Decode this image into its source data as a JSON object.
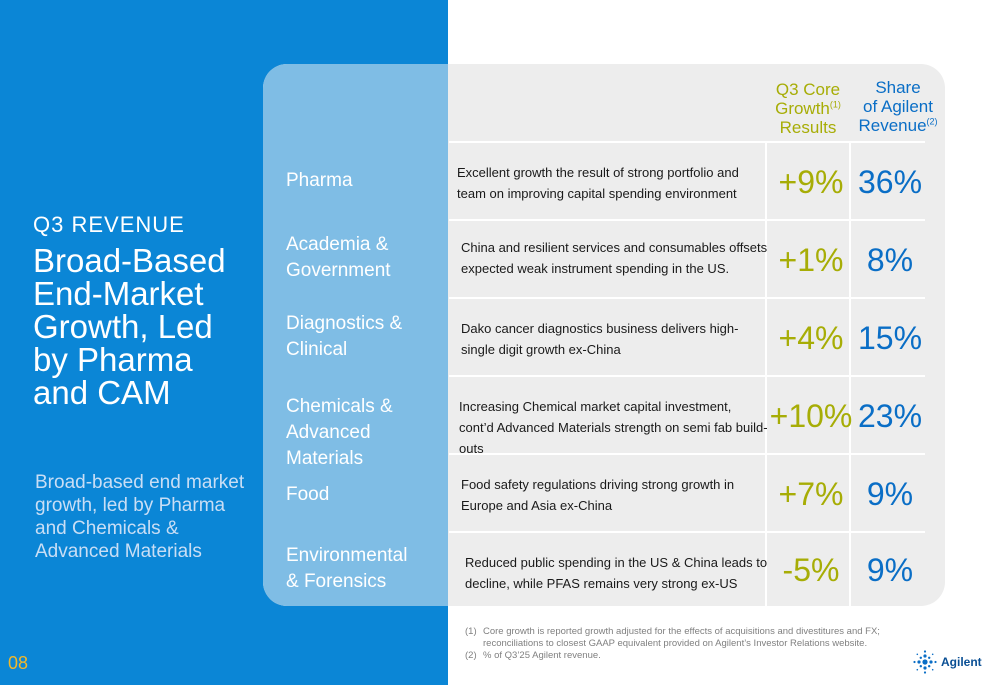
{
  "left": {
    "kicker": "Q3 REVENUE",
    "headline": [
      "Broad-Based",
      "End-Market",
      "Growth, Led",
      "by Pharma",
      "and CAM"
    ],
    "subtext": "Broad-based end market growth, led by Pharma and Chemicals & Advanced Materials",
    "page_number": "08"
  },
  "table": {
    "headers": {
      "growth": {
        "line1": "Q3 Core",
        "line2": "Growth",
        "note": "(1)",
        "line3": "Results"
      },
      "share": {
        "line1": "Share",
        "line2": "of Agilent",
        "line3": "Revenue",
        "note": "(2)"
      }
    },
    "rows": [
      {
        "segment": [
          "Pharma"
        ],
        "description": "Excellent growth the result of strong portfolio and team on improving capital spending environment",
        "growth": "+9%",
        "share": "36%"
      },
      {
        "segment": [
          "Academia &",
          "Government"
        ],
        "description": "China and resilient services and consumables offsets expected weak instrument spending in the US.",
        "growth": "+1%",
        "share": "8%"
      },
      {
        "segment": [
          "Diagnostics &",
          "Clinical"
        ],
        "description": "Dako cancer diagnostics business delivers high-single digit growth ex-China",
        "growth": "+4%",
        "share": "15%"
      },
      {
        "segment": [
          "Chemicals &",
          "Advanced Materials"
        ],
        "description": "Increasing Chemical market capital investment, cont’d Advanced Materials strength on semi fab build-outs",
        "growth": "+10%",
        "share": "23%"
      },
      {
        "segment": [
          "Food"
        ],
        "description": "Food safety regulations driving strong growth in Europe and Asia ex-China",
        "growth": "+7%",
        "share": "9%"
      },
      {
        "segment": [
          "Environmental",
          "& Forensics"
        ],
        "description": "Reduced public spending in the US & China leads to decline, while PFAS remains very strong ex-US",
        "growth": "-5%",
        "share": "9%"
      }
    ]
  },
  "footnotes": [
    {
      "mark": "(1)",
      "text": "Core growth is reported growth adjusted for the effects of acquisitions and divestitures and FX; reconciliations to closest GAAP equivalent provided on Agilent’s Investor Relations website."
    },
    {
      "mark": "(2)",
      "text": "% of Q3’25 Agilent revenue."
    }
  ],
  "logo": {
    "text": "Agilent",
    "icon": "spark-icon"
  },
  "colors": {
    "blue_panel": "#0b86d6",
    "light_blue": "#7fbde5",
    "growth_olive": "#a7ad06",
    "share_blue": "#0a6ec6",
    "page_number_gold": "#f1b82a"
  }
}
